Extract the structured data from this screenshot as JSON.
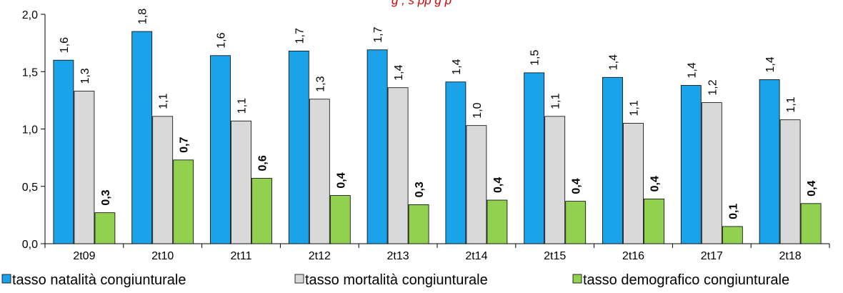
{
  "chart_data": {
    "type": "bar",
    "title": "",
    "top_text": "g               , s                   pp       g              p",
    "categories": [
      "2t09",
      "2t10",
      "2t11",
      "2t12",
      "2t13",
      "2t14",
      "2t15",
      "2t16",
      "2t17",
      "2t18"
    ],
    "series": [
      {
        "name": "tasso natalità congiunturale",
        "color": "#1aa3e8",
        "values": [
          1.6,
          1.85,
          1.64,
          1.68,
          1.69,
          1.41,
          1.49,
          1.45,
          1.38,
          1.43
        ],
        "labels": [
          "1,6",
          "1,8",
          "1,6",
          "1,7",
          "1,7",
          "1,4",
          "1,5",
          "1,4",
          "1,4",
          "1,4"
        ],
        "label_bold": false
      },
      {
        "name": "tasso mortalità congiunturale",
        "color": "#d9d9d9",
        "values": [
          1.33,
          1.11,
          1.07,
          1.26,
          1.36,
          1.03,
          1.11,
          1.05,
          1.23,
          1.08
        ],
        "labels": [
          "1,3",
          "1,1",
          "1,1",
          "1,3",
          "1,4",
          "1,0",
          "1,1",
          "1,1",
          "1,2",
          "1,1"
        ],
        "label_bold": false
      },
      {
        "name": "tasso demografico congiunturale",
        "color": "#92d050",
        "values": [
          0.27,
          0.73,
          0.57,
          0.42,
          0.34,
          0.38,
          0.37,
          0.39,
          0.15,
          0.35
        ],
        "labels": [
          "0,3",
          "0,7",
          "0,6",
          "0,4",
          "0,3",
          "0,4",
          "0,4",
          "0,4",
          "0,1",
          "0,4"
        ],
        "label_bold": true
      }
    ],
    "ylim": [
      0,
      2.0
    ],
    "yticks": [
      0,
      0.5,
      1.0,
      1.5,
      2.0
    ],
    "ytick_labels": [
      "0,0",
      "0,5",
      "1,0",
      "1,5",
      "2,0"
    ],
    "grid": false,
    "legend_position": "bottom",
    "xlabel": "",
    "ylabel": ""
  }
}
